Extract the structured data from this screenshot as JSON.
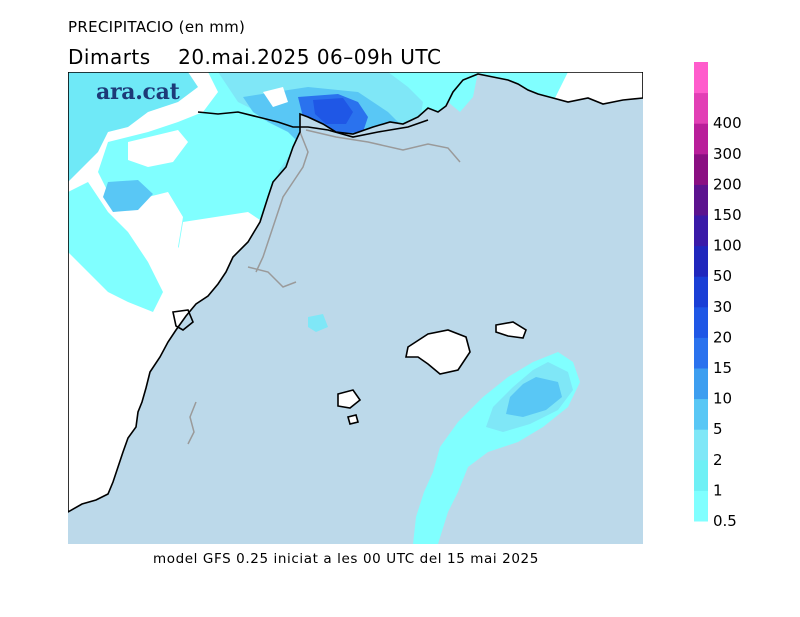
{
  "header": {
    "title": "PRECIPITACIO (en mm)",
    "subtitle": "Dimarts    20.mai.2025 06–09h UTC"
  },
  "brand": {
    "logo_text": "ara.cat"
  },
  "footer": {
    "text": "model GFS 0.25 iniciat a les 00 UTC del 15 mai 2025"
  },
  "legend": {
    "bins": [
      {
        "label": "0.5",
        "color": "#80ffff"
      },
      {
        "label": "1",
        "color": "#6ef0f5"
      },
      {
        "label": "2",
        "color": "#7fe7f7"
      },
      {
        "label": "5",
        "color": "#59c7f5"
      },
      {
        "label": "10",
        "color": "#3d9ef0"
      },
      {
        "label": "15",
        "color": "#2a72ee"
      },
      {
        "label": "20",
        "color": "#1f57e6"
      },
      {
        "label": "30",
        "color": "#1a3fd6"
      },
      {
        "label": "50",
        "color": "#2027bd"
      },
      {
        "label": "100",
        "color": "#3a1aa8"
      },
      {
        "label": "150",
        "color": "#5c138f"
      },
      {
        "label": "200",
        "color": "#8a0f82"
      },
      {
        "label": "300",
        "color": "#b91e9a"
      },
      {
        "label": "400",
        "color": "#e23fb5"
      },
      {
        "label": "",
        "color": "#ff5ccc"
      }
    ]
  },
  "colors": {
    "sea": "#bcd9ea",
    "land": "#ffffff",
    "coast": "#000000",
    "border": "#9a9a9a"
  }
}
